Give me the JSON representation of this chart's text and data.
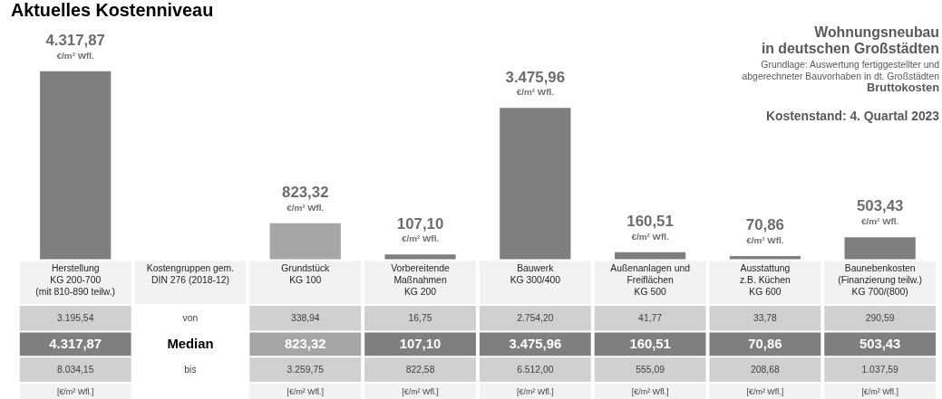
{
  "chart_data": {
    "type": "bar",
    "title": "Aktuelles Kostenniveau",
    "subtitle": "Wohnungsneubau\nin deutschen Großstädten",
    "categories": [
      "Herstellung\nKG 200-700\n(mit 810-890 teilw.)",
      "Kostengruppen gem.\nDIN 276 (2018-12)",
      "Grundstück\nKG 100",
      "Vorbereitende\nMaßnahmen\nKG 200",
      "Bauwerk\nKG 300/400",
      "Außenanlagen und\nFreiflächen\nKG 500",
      "Ausstattung\nz.B. Küchen\nKG 600",
      "Baunebenkosten\n(Finanzierung teilw.)\nKG 700/(800)"
    ],
    "values": [
      4317.87,
      null,
      823.32,
      107.1,
      3475.96,
      160.51,
      70.86,
      503.43
    ],
    "colors": [
      "#7f7f7f",
      null,
      "#a6a6a6",
      "#7f7f7f",
      "#7f7f7f",
      "#7f7f7f",
      "#7f7f7f",
      "#7f7f7f"
    ],
    "value_labels": [
      "4.317,87",
      null,
      "823,32",
      "107,10",
      "3.475,96",
      "160,51",
      "70,86",
      "503,43"
    ],
    "annotations": [
      "Grundlage: Auswertung fertiggestellter und\nabgerechneter Bauvorhaben in dt. Großstädten",
      "Bruttokosten",
      "Kostenstand: 4. Quartal 2023",
      "€/m² Wfl.",
      "3.195,54",
      "von",
      "338,94",
      "16,75",
      "2.754,20",
      "41,77",
      "33,78",
      "290,59",
      "Median",
      "8.034,15",
      "bis",
      "3.259,75",
      "822,58",
      "6.512,00",
      "555,09",
      "208,68",
      "1.037,59",
      "[€/m² Wfl.]",
      "[€/m² Wfl.]",
      "[€/m² Wfl.]",
      "[€/m² Wfl.]",
      "[€/m² Wfl.]",
      "[€/m² Wfl.]",
      "[€/m² Wfl.]"
    ]
  }
}
